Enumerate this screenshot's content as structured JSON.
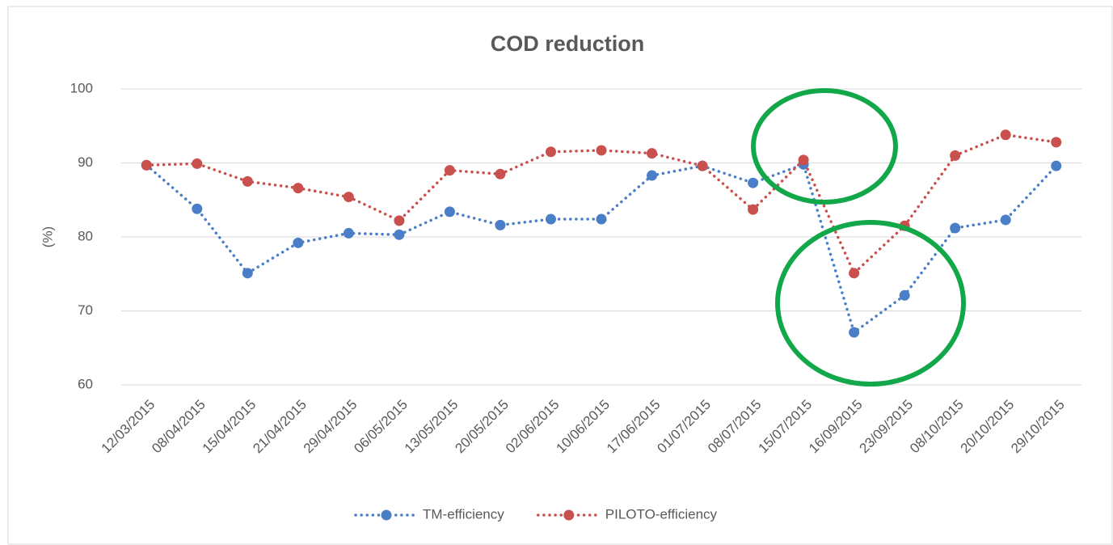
{
  "chart_data": {
    "type": "line",
    "title": "COD reduction",
    "y_label": "(%)",
    "categories": [
      "12/03/2015",
      "08/04/2015",
      "15/04/2015",
      "21/04/2015",
      "29/04/2015",
      "06/05/2015",
      "13/05/2015",
      "20/05/2015",
      "02/06/2015",
      "10/06/2015",
      "17/06/2015",
      "01/07/2015",
      "08/07/2015",
      "15/07/2015",
      "16/09/2015",
      "23/09/2015",
      "08/10/2015",
      "20/10/2015",
      "29/10/2015"
    ],
    "series": [
      {
        "name": "TM-efficiency",
        "color": "#4a7ec6",
        "values": [
          89.7,
          83.8,
          75.1,
          79.2,
          80.5,
          80.3,
          83.4,
          81.6,
          82.4,
          82.4,
          88.3,
          89.6,
          87.3,
          89.8,
          67.1,
          72.1,
          81.2,
          82.3,
          89.6
        ]
      },
      {
        "name": "PILOTO-efficiency",
        "color": "#c9504c",
        "values": [
          89.7,
          89.9,
          87.5,
          86.6,
          85.4,
          82.2,
          89.0,
          88.5,
          91.5,
          91.7,
          91.3,
          89.6,
          83.7,
          90.4,
          75.1,
          81.5,
          91.0,
          93.8,
          92.8
        ]
      }
    ],
    "ylim": [
      60,
      100
    ],
    "yticks": [
      60,
      70,
      80,
      90,
      100
    ],
    "grid": true,
    "legend": "bottom"
  }
}
